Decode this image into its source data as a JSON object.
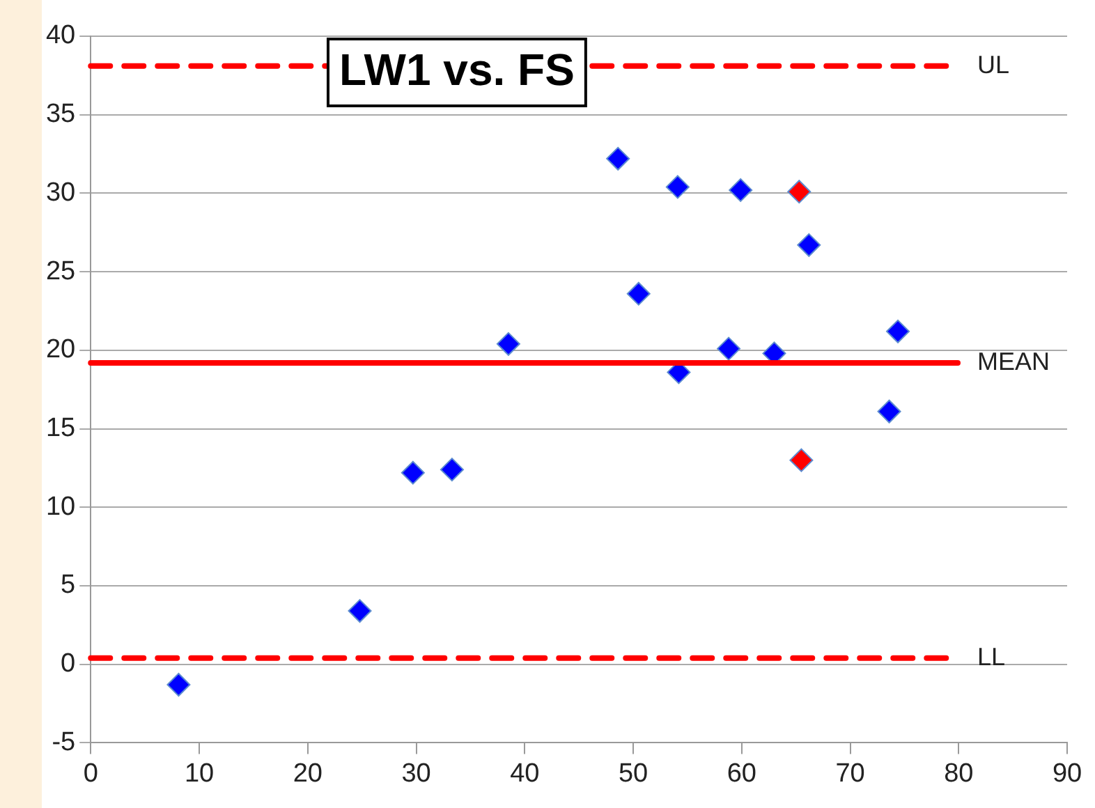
{
  "chart_data": {
    "type": "scatter",
    "title": "LW1 vs. FS",
    "series": [
      {
        "color": "#0000ff",
        "x": [
          8.1,
          24.8,
          29.7,
          33.3,
          38.5,
          48.6,
          50.5,
          54.1,
          54.2,
          58.8,
          59.9,
          63.0,
          66.2,
          73.6,
          74.4
        ],
        "values": [
          -1.3,
          3.4,
          12.2,
          12.4,
          20.4,
          32.2,
          23.6,
          30.4,
          18.6,
          20.1,
          30.2,
          19.8,
          26.7,
          16.1,
          21.2
        ]
      },
      {
        "color": "#ff0000",
        "x": [
          65.3,
          65.5
        ],
        "values": [
          30.1,
          13.0
        ]
      }
    ],
    "xlim": [
      0,
      90
    ],
    "xticks": [
      0,
      10,
      20,
      30,
      40,
      50,
      60,
      70,
      80,
      90
    ],
    "ylim": [
      -5,
      40
    ],
    "yticks": [
      -5,
      0,
      5,
      10,
      15,
      20,
      25,
      30,
      35,
      40
    ],
    "ref_lines": [
      {
        "axis": "y",
        "value": 38.1,
        "label": "UL",
        "color": "#ff0000",
        "line_style": "dashed"
      },
      {
        "axis": "y",
        "value": 19.2,
        "label": "MEAN",
        "color": "#ff0000",
        "line_style": "solid"
      },
      {
        "axis": "y",
        "value": 0.4,
        "label": "LL",
        "color": "#ff0000",
        "line_style": "dashed"
      }
    ],
    "grid": "y",
    "legend": false,
    "marker": "diamond"
  }
}
